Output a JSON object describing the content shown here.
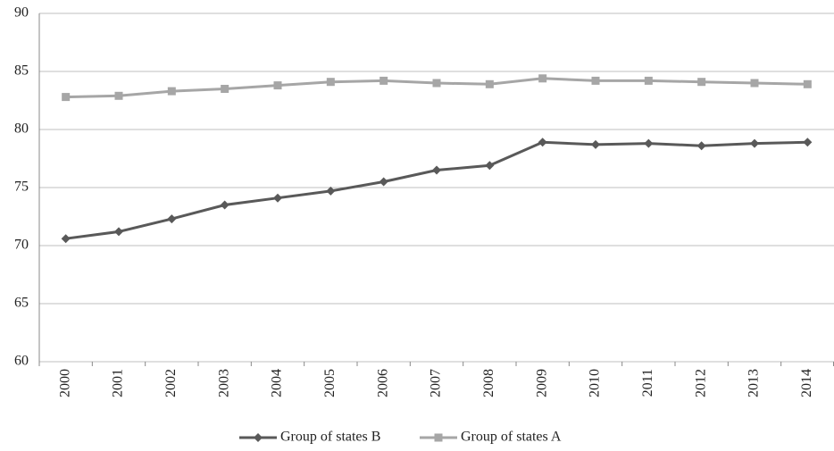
{
  "chart_data": {
    "type": "line",
    "categories": [
      "2000",
      "2001",
      "2002",
      "2003",
      "2004",
      "2005",
      "2006",
      "2007",
      "2008",
      "2009",
      "2010",
      "2011",
      "2012",
      "2013",
      "2014"
    ],
    "series": [
      {
        "name": "Group of states B",
        "color": "#595959",
        "marker": "diamond",
        "values": [
          70.6,
          71.2,
          72.3,
          73.5,
          74.1,
          74.7,
          75.5,
          76.5,
          76.9,
          78.9,
          78.7,
          78.8,
          78.6,
          78.8,
          78.9
        ]
      },
      {
        "name": "Group of states A",
        "color": "#a6a6a6",
        "marker": "square",
        "values": [
          82.8,
          82.9,
          83.3,
          83.5,
          83.8,
          84.1,
          84.2,
          84.0,
          83.9,
          84.4,
          84.2,
          84.2,
          84.1,
          84.0,
          83.9
        ]
      }
    ],
    "ylim": [
      60,
      90
    ],
    "yticks": [
      60,
      65,
      70,
      75,
      80,
      85,
      90
    ],
    "grid": true,
    "legend": "bottom"
  }
}
